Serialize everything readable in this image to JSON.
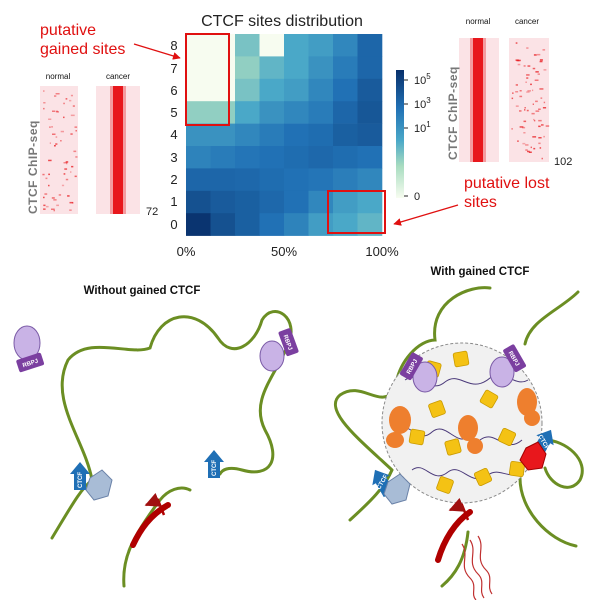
{
  "heatmap": {
    "title": "CTCF sites distribution",
    "y_ticks": [
      "0",
      "1",
      "2",
      "3",
      "4",
      "5",
      "6",
      "7",
      "8"
    ],
    "x_ticks": [
      "0%",
      "50%",
      "100%"
    ],
    "colorbar_ticks": [
      "10^5",
      "10^3",
      "10^1",
      "0"
    ],
    "scale": "log"
  },
  "annotations": {
    "gained_line1": "putative",
    "gained_line2": "gained sites",
    "lost_line1": "putative lost",
    "lost_line2": "sites"
  },
  "chip_left": {
    "label": "CTCF ChIP-seq",
    "normal": "normal",
    "cancer": "cancer",
    "count": "72"
  },
  "chip_right": {
    "label": "CTCF ChIP-seq",
    "normal": "normal",
    "cancer": "cancer",
    "count": "102"
  },
  "panel_left": {
    "title": "Without gained CTCF",
    "rbpj": "RBPJ",
    "ctcf": "CTCF"
  },
  "panel_right": {
    "title": "With gained CTCF",
    "rbpj": "RBPJ",
    "ctcf": "CTCF"
  },
  "colors": {
    "annotation_red": "#e01010",
    "chromatin_green": "#6b8e23",
    "ctcf_blue": "#1f6fb5",
    "rbpj_purple": "#8e44ad"
  }
}
